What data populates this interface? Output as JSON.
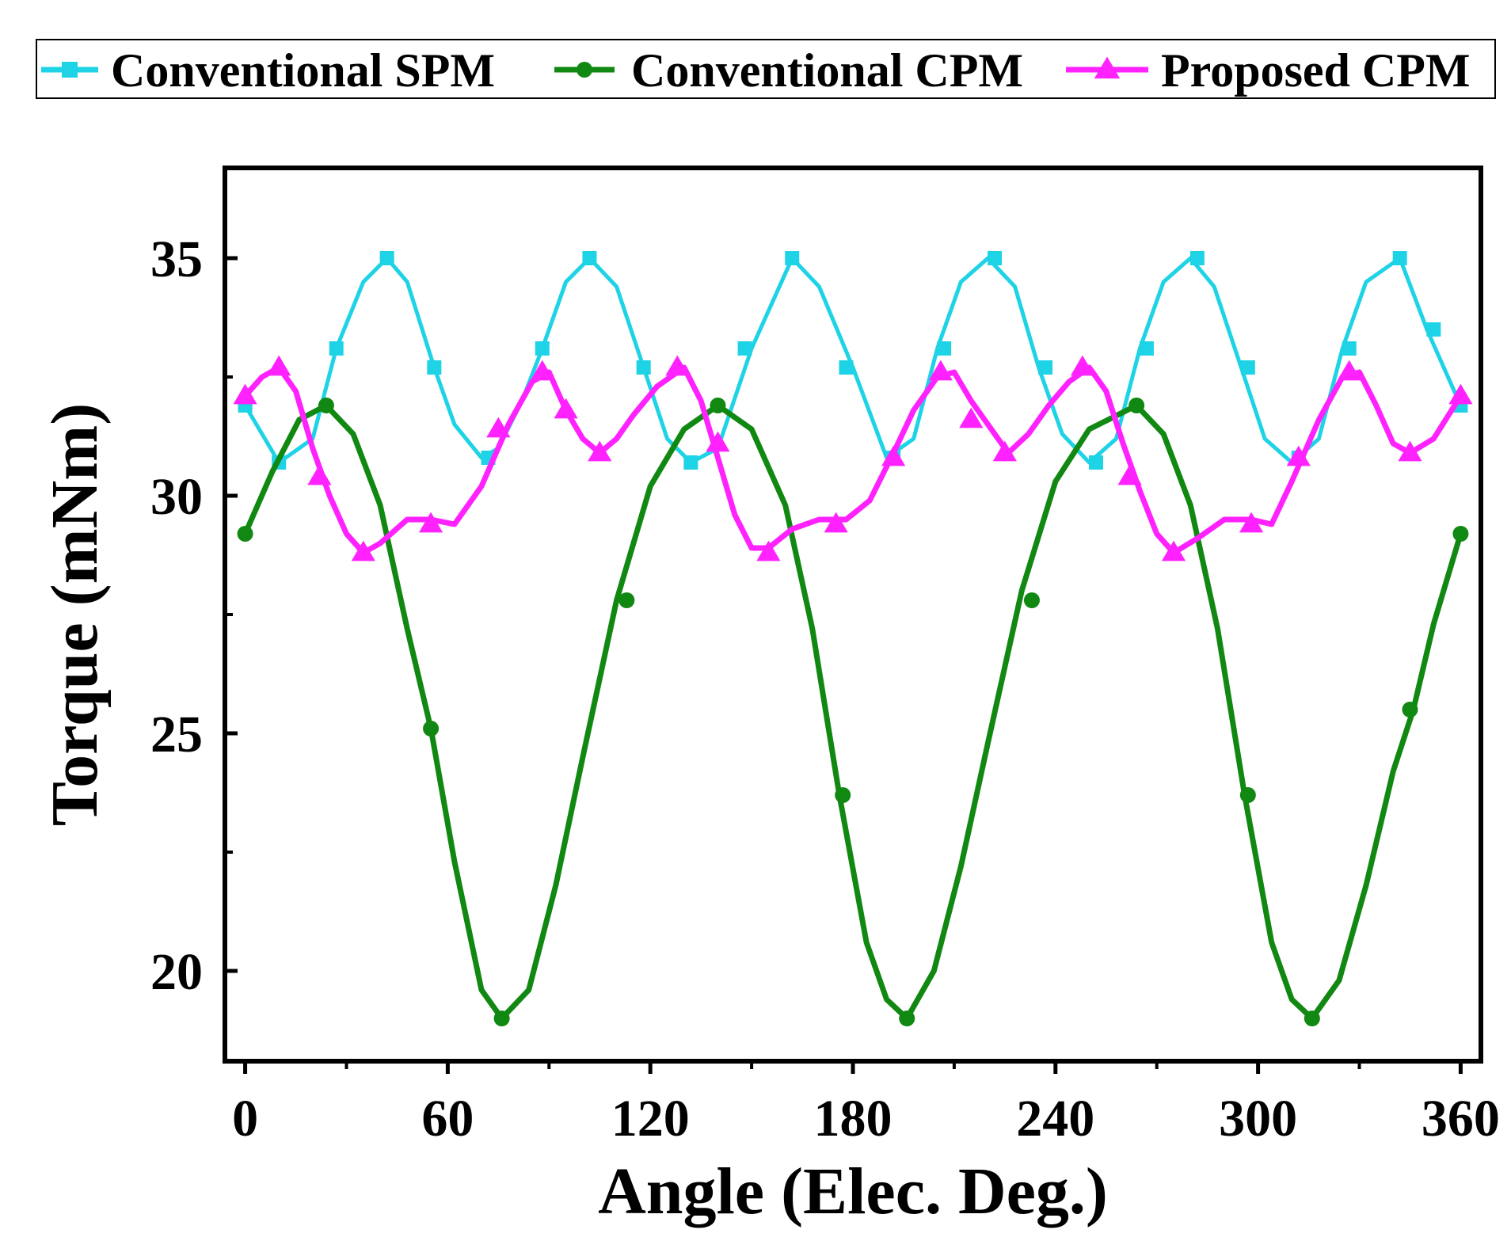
{
  "chart_data": {
    "type": "line",
    "title": "",
    "xlabel": "Angle (Elec. Deg.)",
    "ylabel": "Torque (mNm)",
    "xlim": [
      -6,
      366
    ],
    "ylim": [
      18.1,
      36.9
    ],
    "xticks": [
      0,
      60,
      120,
      180,
      240,
      300,
      360
    ],
    "xtick_labels": [
      "0",
      "60",
      "120",
      "180",
      "240",
      "300",
      "360"
    ],
    "yticks": [
      20,
      25,
      30,
      35
    ],
    "ytick_labels": [
      "20",
      "25",
      "30",
      "35"
    ],
    "grid": false,
    "legend_position": "top",
    "series": [
      {
        "name": "Conventional SPM",
        "color": "#1ed3e6",
        "marker": "square",
        "x": [
          0,
          10,
          20,
          27,
          35,
          42,
          48,
          56,
          62,
          70,
          75,
          82,
          88,
          95,
          102,
          110,
          118,
          125,
          132,
          140,
          150,
          162,
          170,
          180,
          190,
          198,
          205,
          212,
          220,
          228,
          235,
          242,
          250,
          258,
          265,
          272,
          280,
          287,
          295,
          302,
          310,
          318,
          325,
          332,
          342,
          350,
          360
        ],
        "values": [
          31.9,
          30.7,
          31.2,
          33.1,
          34.5,
          35.0,
          34.5,
          32.7,
          31.5,
          30.8,
          31.0,
          32.0,
          33.1,
          34.5,
          35.0,
          34.4,
          32.7,
          31.2,
          30.7,
          31.0,
          33.1,
          35.0,
          34.4,
          32.7,
          30.8,
          31.2,
          33.1,
          34.5,
          35.0,
          34.4,
          32.7,
          31.3,
          30.7,
          31.2,
          33.1,
          34.5,
          35.0,
          34.4,
          32.7,
          31.2,
          30.7,
          31.2,
          33.1,
          34.5,
          35.0,
          33.5,
          31.9
        ],
        "marker_x": [
          0,
          10,
          27,
          42,
          56,
          72,
          88,
          102,
          118,
          132,
          148,
          162,
          178,
          192,
          207,
          222,
          237,
          252,
          267,
          282,
          297,
          312,
          327,
          342,
          352,
          360
        ],
        "marker_values": [
          31.9,
          30.7,
          33.1,
          35.0,
          32.7,
          30.8,
          33.1,
          35.0,
          32.7,
          30.7,
          33.1,
          35.0,
          32.7,
          30.8,
          33.1,
          35.0,
          32.7,
          30.7,
          33.1,
          35.0,
          32.7,
          30.8,
          33.1,
          35.0,
          33.5,
          31.9
        ]
      },
      {
        "name": "Conventional CPM",
        "color": "#118811",
        "marker": "circle",
        "x": [
          0,
          8,
          16,
          24,
          32,
          40,
          48,
          55,
          62,
          70,
          76,
          84,
          92,
          100,
          110,
          120,
          130,
          140,
          150,
          160,
          168,
          176,
          184,
          190,
          196,
          204,
          212,
          220,
          230,
          240,
          250,
          264,
          272,
          280,
          288,
          296,
          304,
          310,
          316,
          324,
          332,
          340,
          346,
          352,
          360
        ],
        "values": [
          29.2,
          30.5,
          31.6,
          31.9,
          31.3,
          29.8,
          27.2,
          25.1,
          22.3,
          19.6,
          19.0,
          19.6,
          21.8,
          24.5,
          27.8,
          30.2,
          31.4,
          31.9,
          31.4,
          29.8,
          27.2,
          23.7,
          20.6,
          19.4,
          19.0,
          20.0,
          22.2,
          24.8,
          28.0,
          30.3,
          31.4,
          31.9,
          31.3,
          29.8,
          27.2,
          23.7,
          20.6,
          19.4,
          19.0,
          19.8,
          21.8,
          24.2,
          25.5,
          27.3,
          29.2
        ],
        "marker_x": [
          0,
          24,
          55,
          76,
          113,
          140,
          177,
          196,
          233,
          264,
          297,
          316,
          345,
          360
        ],
        "marker_values": [
          29.2,
          31.9,
          25.1,
          19.0,
          27.8,
          31.9,
          23.7,
          19.0,
          27.8,
          31.9,
          23.7,
          19.0,
          25.5,
          29.2
        ]
      },
      {
        "name": "Proposed CPM",
        "color": "#ff22ff",
        "marker": "triangle",
        "x": [
          0,
          5,
          10,
          15,
          20,
          25,
          30,
          35,
          40,
          48,
          55,
          62,
          70,
          78,
          85,
          90,
          95,
          100,
          105,
          110,
          115,
          122,
          130,
          135,
          140,
          145,
          150,
          155,
          162,
          170,
          178,
          185,
          192,
          198,
          205,
          210,
          215,
          220,
          226,
          232,
          238,
          244,
          250,
          255,
          260,
          265,
          270,
          275,
          282,
          290,
          298,
          304,
          310,
          318,
          325,
          330,
          335,
          340,
          345,
          352,
          360
        ],
        "values": [
          32.1,
          32.5,
          32.7,
          32.2,
          31.0,
          30.0,
          29.2,
          28.8,
          29.0,
          29.5,
          29.5,
          29.4,
          30.2,
          31.5,
          32.4,
          32.6,
          31.8,
          31.2,
          30.9,
          31.2,
          31.7,
          32.3,
          32.7,
          32.0,
          30.8,
          29.6,
          28.9,
          28.9,
          29.3,
          29.5,
          29.5,
          29.9,
          30.9,
          31.8,
          32.5,
          32.6,
          32.0,
          31.5,
          30.9,
          31.3,
          31.9,
          32.4,
          32.7,
          32.2,
          31.1,
          30.1,
          29.2,
          28.8,
          29.1,
          29.5,
          29.5,
          29.4,
          30.3,
          31.6,
          32.5,
          32.6,
          31.9,
          31.1,
          30.9,
          31.2,
          32.1
        ],
        "marker_x": [
          0,
          10,
          22,
          35,
          55,
          75,
          88,
          95,
          105,
          128,
          140,
          155,
          175,
          192,
          206,
          215,
          225,
          248,
          262,
          275,
          298,
          312,
          327,
          345,
          360
        ],
        "marker_values": [
          32.1,
          32.7,
          30.4,
          28.8,
          29.4,
          31.4,
          32.6,
          31.8,
          30.9,
          32.7,
          31.1,
          28.8,
          29.4,
          30.8,
          32.6,
          31.6,
          30.9,
          32.7,
          30.4,
          28.8,
          29.4,
          30.8,
          32.6,
          30.9,
          32.1
        ]
      }
    ]
  }
}
